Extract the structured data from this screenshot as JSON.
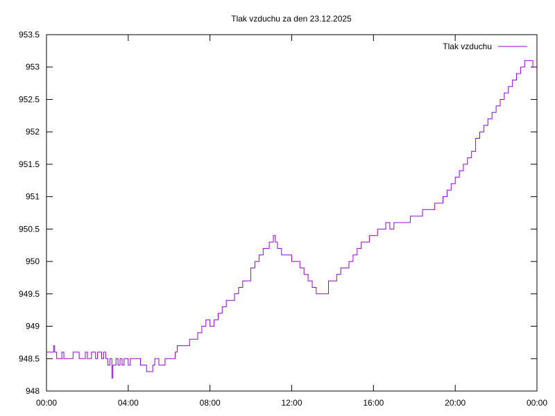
{
  "chart_data": {
    "type": "line",
    "title": "Tlak vzduchu za den 23.12.2025",
    "xlabel": "",
    "ylabel": "",
    "x_range_hours": [
      0,
      24
    ],
    "ylim": [
      948,
      953.5
    ],
    "x_tick_labels": [
      "00:00",
      "04:00",
      "08:00",
      "12:00",
      "16:00",
      "20:00",
      "00:00"
    ],
    "y_tick_labels": [
      "948",
      "948.5",
      "949",
      "949.5",
      "950",
      "950.5",
      "951",
      "951.5",
      "952",
      "952.5",
      "953",
      "953.5"
    ],
    "grid": false,
    "legend_position": "top-right",
    "series": [
      {
        "name": "Tlak vzduchu",
        "color": "#9400d3",
        "points": [
          [
            0.0,
            948.6
          ],
          [
            0.3,
            948.6
          ],
          [
            0.35,
            948.7
          ],
          [
            0.4,
            948.6
          ],
          [
            0.5,
            948.5
          ],
          [
            0.6,
            948.5
          ],
          [
            0.8,
            948.5
          ],
          [
            0.75,
            948.6
          ],
          [
            0.85,
            948.5
          ],
          [
            1.2,
            948.5
          ],
          [
            1.3,
            948.6
          ],
          [
            1.5,
            948.6
          ],
          [
            1.6,
            948.5
          ],
          [
            1.8,
            948.5
          ],
          [
            1.9,
            948.6
          ],
          [
            2.0,
            948.5
          ],
          [
            2.2,
            948.6
          ],
          [
            2.4,
            948.5
          ],
          [
            2.5,
            948.6
          ],
          [
            2.7,
            948.5
          ],
          [
            2.8,
            948.6
          ],
          [
            2.9,
            948.5
          ],
          [
            3.0,
            948.4
          ],
          [
            3.1,
            948.5
          ],
          [
            3.2,
            948.2
          ],
          [
            3.25,
            948.4
          ],
          [
            3.4,
            948.5
          ],
          [
            3.5,
            948.4
          ],
          [
            3.6,
            948.5
          ],
          [
            3.7,
            948.4
          ],
          [
            3.8,
            948.5
          ],
          [
            3.9,
            948.5
          ],
          [
            4.0,
            948.4
          ],
          [
            4.1,
            948.5
          ],
          [
            4.3,
            948.5
          ],
          [
            4.5,
            948.5
          ],
          [
            4.6,
            948.4
          ],
          [
            4.8,
            948.4
          ],
          [
            4.9,
            948.3
          ],
          [
            5.1,
            948.3
          ],
          [
            5.2,
            948.4
          ],
          [
            5.3,
            948.5
          ],
          [
            5.4,
            948.5
          ],
          [
            5.5,
            948.4
          ],
          [
            5.7,
            948.4
          ],
          [
            5.8,
            948.5
          ],
          [
            6.0,
            948.5
          ],
          [
            6.2,
            948.5
          ],
          [
            6.3,
            948.6
          ],
          [
            6.4,
            948.7
          ],
          [
            6.6,
            948.7
          ],
          [
            6.8,
            948.7
          ],
          [
            7.0,
            948.8
          ],
          [
            7.2,
            948.8
          ],
          [
            7.4,
            948.9
          ],
          [
            7.6,
            949.0
          ],
          [
            7.8,
            949.1
          ],
          [
            8.0,
            949.0
          ],
          [
            8.2,
            949.1
          ],
          [
            8.4,
            949.2
          ],
          [
            8.6,
            949.3
          ],
          [
            8.8,
            949.4
          ],
          [
            9.0,
            949.4
          ],
          [
            9.2,
            949.5
          ],
          [
            9.4,
            949.6
          ],
          [
            9.6,
            949.7
          ],
          [
            9.8,
            949.7
          ],
          [
            10.0,
            949.9
          ],
          [
            10.2,
            950.0
          ],
          [
            10.4,
            950.1
          ],
          [
            10.6,
            950.2
          ],
          [
            10.8,
            950.2
          ],
          [
            10.9,
            950.3
          ],
          [
            11.0,
            950.3
          ],
          [
            11.1,
            950.4
          ],
          [
            11.2,
            950.3
          ],
          [
            11.3,
            950.2
          ],
          [
            11.5,
            950.1
          ],
          [
            11.7,
            950.1
          ],
          [
            11.9,
            950.1
          ],
          [
            12.0,
            950.0
          ],
          [
            12.2,
            950.0
          ],
          [
            12.4,
            949.9
          ],
          [
            12.6,
            949.8
          ],
          [
            12.8,
            949.7
          ],
          [
            13.0,
            949.6
          ],
          [
            13.2,
            949.5
          ],
          [
            13.4,
            949.5
          ],
          [
            13.6,
            949.5
          ],
          [
            13.8,
            949.7
          ],
          [
            14.0,
            949.7
          ],
          [
            14.2,
            949.8
          ],
          [
            14.4,
            949.9
          ],
          [
            14.6,
            949.9
          ],
          [
            14.8,
            950.0
          ],
          [
            15.0,
            950.1
          ],
          [
            15.2,
            950.2
          ],
          [
            15.4,
            950.3
          ],
          [
            15.6,
            950.3
          ],
          [
            15.8,
            950.4
          ],
          [
            16.0,
            950.4
          ],
          [
            16.2,
            950.5
          ],
          [
            16.4,
            950.5
          ],
          [
            16.6,
            950.6
          ],
          [
            16.8,
            950.5
          ],
          [
            17.0,
            950.6
          ],
          [
            17.2,
            950.6
          ],
          [
            17.4,
            950.6
          ],
          [
            17.6,
            950.6
          ],
          [
            17.8,
            950.7
          ],
          [
            18.0,
            950.7
          ],
          [
            18.2,
            950.7
          ],
          [
            18.4,
            950.8
          ],
          [
            18.6,
            950.8
          ],
          [
            18.8,
            950.8
          ],
          [
            19.0,
            950.9
          ],
          [
            19.2,
            950.9
          ],
          [
            19.4,
            951.0
          ],
          [
            19.6,
            951.1
          ],
          [
            19.8,
            951.2
          ],
          [
            20.0,
            951.3
          ],
          [
            20.2,
            951.4
          ],
          [
            20.4,
            951.5
          ],
          [
            20.6,
            951.6
          ],
          [
            20.8,
            951.7
          ],
          [
            21.0,
            951.9
          ],
          [
            21.2,
            952.0
          ],
          [
            21.4,
            952.1
          ],
          [
            21.6,
            952.2
          ],
          [
            21.8,
            952.3
          ],
          [
            22.0,
            952.4
          ],
          [
            22.2,
            952.5
          ],
          [
            22.4,
            952.6
          ],
          [
            22.6,
            952.7
          ],
          [
            22.8,
            952.8
          ],
          [
            23.0,
            952.9
          ],
          [
            23.2,
            953.0
          ],
          [
            23.4,
            953.1
          ],
          [
            23.6,
            953.1
          ],
          [
            23.8,
            953.0
          ],
          [
            24.0,
            953.0
          ]
        ]
      }
    ]
  }
}
